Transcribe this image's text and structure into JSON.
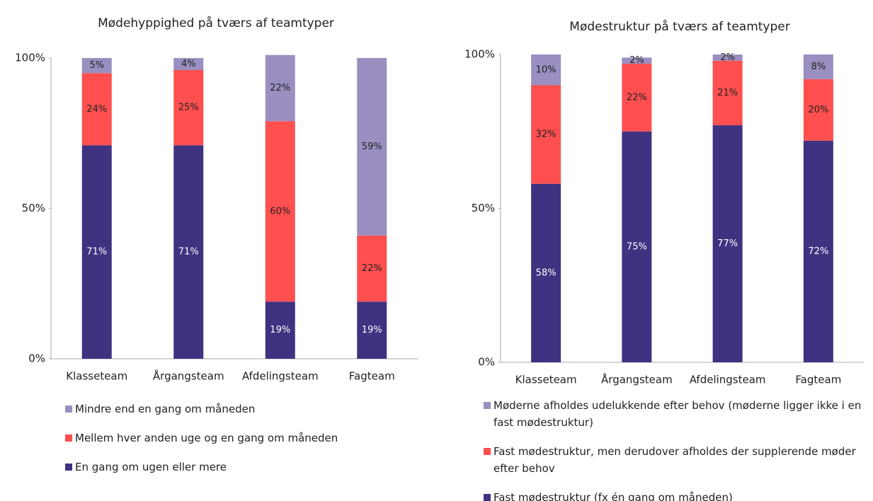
{
  "chart_data": [
    {
      "type": "stacked_bar",
      "title": "Mødehyppighed på tværs af teamtyper",
      "categories": [
        "Klasseteam",
        "Årgangsteam",
        "Afdelingsteam",
        "Fagteam"
      ],
      "series": [
        {
          "name": "En gang om ugen eller mere",
          "color": "#3f3280",
          "values": [
            71,
            71,
            19,
            19
          ],
          "value_labels": [
            "71%",
            "71%",
            "19%",
            "19%"
          ]
        },
        {
          "name": "Mellem hver anden uge og en gang om måneden",
          "color": "#ff4f4f",
          "values": [
            24,
            25,
            60,
            22
          ],
          "value_labels": [
            "24%",
            "25%",
            "60%",
            "22%"
          ]
        },
        {
          "name": "Mindre end en gang om måneden",
          "color": "#9a8fc0",
          "values": [
            5,
            4,
            22,
            59
          ],
          "value_labels": [
            "5%",
            "4%",
            "22%",
            "59%"
          ]
        }
      ],
      "ylim": [
        0,
        100
      ],
      "yticks": [
        {
          "value": 0,
          "label": "0%"
        },
        {
          "value": 50,
          "label": "50%"
        },
        {
          "value": 100,
          "label": "100%"
        }
      ]
    },
    {
      "type": "stacked_bar",
      "title": "Mødestruktur på tværs af teamtyper",
      "categories": [
        "Klasseteam",
        "Årgangsteam",
        "Afdelingsteam",
        "Fagteam"
      ],
      "series": [
        {
          "name": "Fast mødestruktur (fx én gang om måneden)",
          "color": "#3f3280",
          "values": [
            58,
            75,
            77,
            72
          ],
          "value_labels": [
            "58%",
            "75%",
            "77%",
            "72%"
          ]
        },
        {
          "name": "Fast mødestruktur, men derudover afholdes der supplerende møder efter behov",
          "color": "#ff4f4f",
          "values": [
            32,
            22,
            21,
            20
          ],
          "value_labels": [
            "32%",
            "22%",
            "21%",
            "20%"
          ]
        },
        {
          "name": "Møderne afholdes udelukkende efter behov (møderne ligger ikke i en fast mødestruktur)",
          "color": "#9a8fc0",
          "values": [
            10,
            2,
            2,
            8
          ],
          "value_labels": [
            "10%",
            "2%",
            "2%",
            "8%"
          ]
        }
      ],
      "ylim": [
        0,
        100
      ],
      "yticks": [
        {
          "value": 0,
          "label": "0%"
        },
        {
          "value": 50,
          "label": "50%"
        },
        {
          "value": 100,
          "label": "100%"
        }
      ]
    }
  ]
}
